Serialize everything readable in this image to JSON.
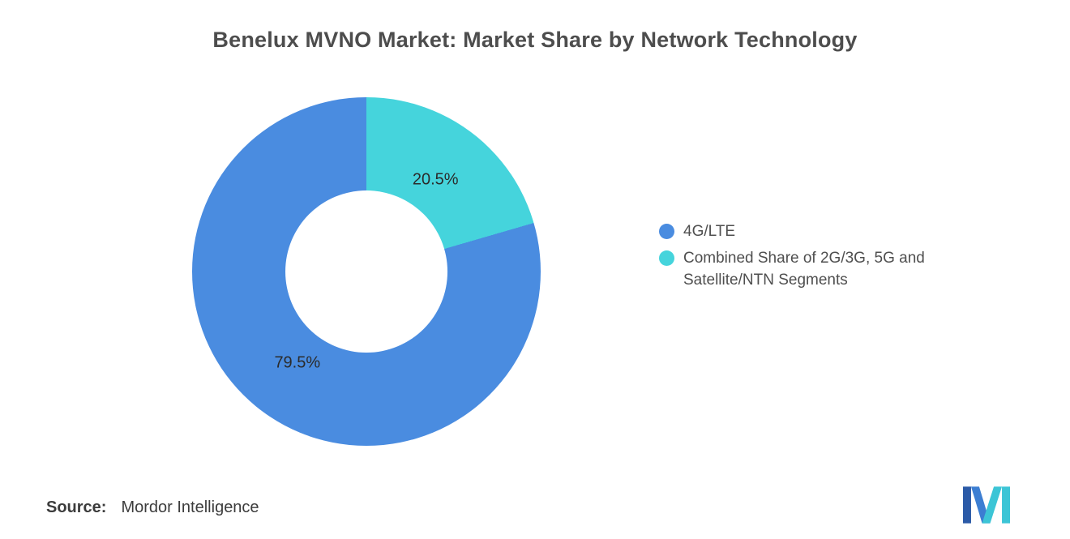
{
  "page": {
    "background": "#ffffff"
  },
  "title": "Benelux MVNO Market: Market Share by Network Technology",
  "chart_data": {
    "type": "pie",
    "subtype": "donut",
    "title": "Benelux MVNO Market: Market Share by Network Technology",
    "categories": [
      "4G/LTE",
      "Combined Share of 2G/3G, 5G and Satellite/NTN Segments"
    ],
    "values": [
      79.5,
      20.5
    ],
    "value_labels": [
      "79.5%",
      "20.5%"
    ],
    "colors": [
      "#4A8CE0",
      "#45D4DC"
    ],
    "unit": "%",
    "legend_position": "right",
    "inner_radius_ratio": 0.465,
    "start_angle_deg": 0,
    "direction": "counterclockwise"
  },
  "legend": {
    "items": [
      {
        "label": "4G/LTE",
        "color": "#4A8CE0"
      },
      {
        "label": "Combined Share of 2G/3G, 5G and Satellite/NTN Segments",
        "color": "#45D4DC"
      }
    ]
  },
  "source": {
    "label": "Source:",
    "value": "Mordor Intelligence"
  },
  "logo": {
    "name": "mordor-intelligence-logo",
    "colors": {
      "dark_blue": "#2B5AA7",
      "blue": "#3C7ED2",
      "teal": "#3CC5D6"
    }
  }
}
